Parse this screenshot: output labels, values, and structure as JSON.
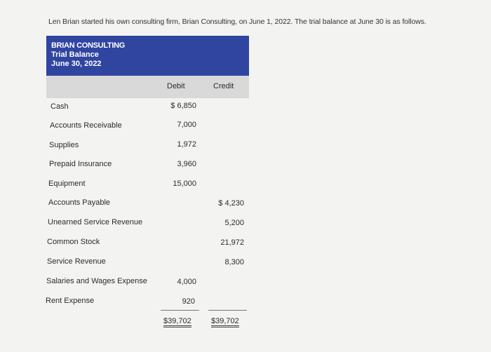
{
  "intro_text": "Len Brian started his own consulting firm, Brian Consulting, on June 1, 2022. The trial balance at June 30 is as follows.",
  "header": {
    "company": "BRIAN CONSULTING",
    "statement": "Trial Balance",
    "date": "June 30, 2022"
  },
  "columns": {
    "debit": "Debit",
    "credit": "Credit"
  },
  "rows": [
    {
      "account": "Cash",
      "debit": "$ 6,850",
      "credit": ""
    },
    {
      "account": "Accounts Receivable",
      "debit": "7,000",
      "credit": ""
    },
    {
      "account": "Supplies",
      "debit": "1,972",
      "credit": ""
    },
    {
      "account": "Prepaid Insurance",
      "debit": "3,960",
      "credit": ""
    },
    {
      "account": "Equipment",
      "debit": "15,000",
      "credit": ""
    },
    {
      "account": "Accounts Payable",
      "debit": "",
      "credit": "$ 4,230"
    },
    {
      "account": "Unearned Service Revenue",
      "debit": "",
      "credit": "5,200"
    },
    {
      "account": "Common Stock",
      "debit": "",
      "credit": "21,972"
    },
    {
      "account": "Service Revenue",
      "debit": "",
      "credit": "8,300"
    },
    {
      "account": "Salaries and Wages Expense",
      "debit": "4,000",
      "credit": ""
    },
    {
      "account": "Rent Expense",
      "debit": "920",
      "credit": ""
    }
  ],
  "totals": {
    "debit": "$39,702",
    "credit": "$39,702"
  }
}
